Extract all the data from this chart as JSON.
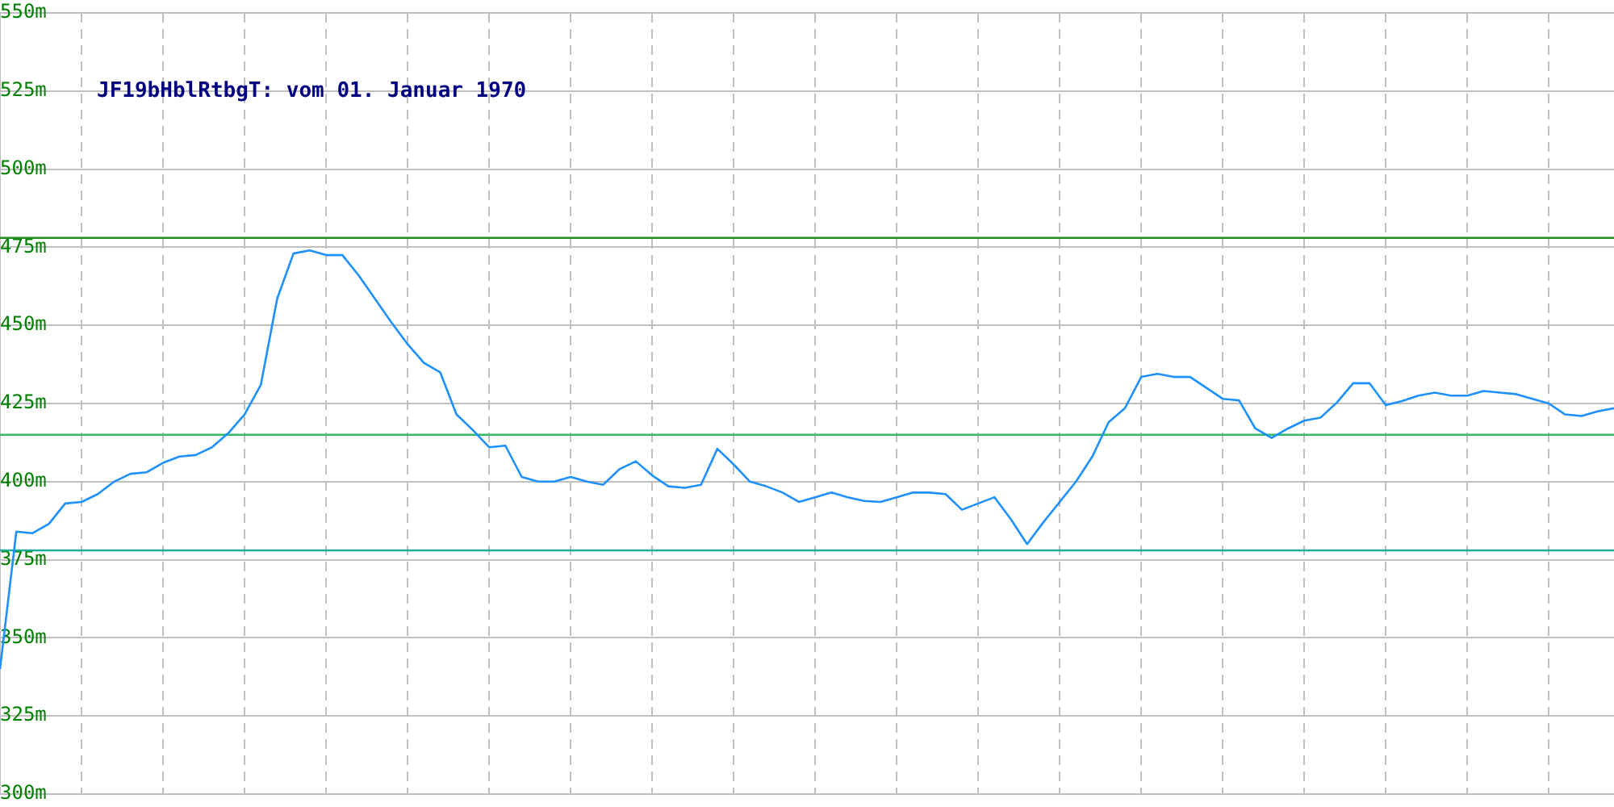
{
  "chart_data": {
    "type": "line",
    "title": "JF19bHblRtbgT: vom 01. Januar 1970",
    "categories": [
      null,
      null,
      null,
      null,
      null,
      null,
      null,
      null,
      null,
      null,
      null,
      null,
      null,
      null,
      null,
      null,
      null,
      null,
      null,
      null,
      null,
      null,
      null,
      null,
      null,
      null,
      null,
      null,
      null,
      null,
      null,
      null,
      null,
      null,
      null,
      null,
      null,
      null,
      null,
      null,
      null,
      null,
      null,
      null,
      null,
      null,
      null,
      null,
      null,
      null,
      null,
      null,
      null,
      null,
      null,
      null,
      null,
      null,
      null,
      null,
      null,
      null,
      null,
      null,
      null,
      null,
      null,
      null,
      null,
      null,
      null,
      null,
      null,
      null,
      null,
      null,
      null,
      null,
      null,
      null,
      null,
      null,
      null,
      null,
      null,
      null,
      null,
      null,
      null,
      null,
      null,
      null,
      null,
      null,
      null,
      null,
      null,
      null,
      null,
      null
    ],
    "series": [
      {
        "color": "#1e90ff",
        "values": [
          340,
          384,
          383.5,
          386.5,
          393,
          393.5,
          396,
          400,
          402.5,
          403,
          406,
          408,
          408.5,
          411,
          415.5,
          421.5,
          431,
          458.5,
          473,
          474,
          472.5,
          472.5,
          466,
          458.5,
          451,
          444,
          438,
          435,
          421.5,
          416.5,
          411,
          411.5,
          401.5,
          400,
          400,
          401.5,
          400,
          399,
          404,
          406.5,
          402,
          398.5,
          398,
          399,
          410.5,
          405.5,
          400,
          398.5,
          396.5,
          393.5,
          395,
          396.5,
          395,
          393.8,
          393.5,
          395,
          396.5,
          396.5,
          396,
          391,
          393,
          395,
          388,
          380,
          387,
          393.5,
          400,
          408,
          419,
          423.5,
          433.5,
          434.5,
          433.5,
          433.5,
          430,
          426.5,
          426,
          417,
          414,
          417,
          419.5,
          420.5,
          425.3,
          431.5,
          431.5,
          424.5,
          425.8,
          427.5,
          428.5,
          427.5,
          427.5,
          429,
          428.5,
          428,
          426.5,
          425,
          421.5,
          421,
          422.5,
          423.5
        ]
      }
    ],
    "ylim": [
      300,
      550
    ],
    "yticks": [
      {
        "value": 300,
        "label": "300m"
      },
      {
        "value": 325,
        "label": "325m"
      },
      {
        "value": 350,
        "label": "350m"
      },
      {
        "value": 375,
        "label": "375m"
      },
      {
        "value": 400,
        "label": "400m"
      },
      {
        "value": 425,
        "label": "425m"
      },
      {
        "value": 450,
        "label": "450m"
      },
      {
        "value": 475,
        "label": "475m"
      },
      {
        "value": 500,
        "label": "500m"
      },
      {
        "value": 525,
        "label": "525m"
      },
      {
        "value": 550,
        "label": "550m"
      }
    ],
    "tick_labels": "y",
    "grid": true,
    "marker": "none",
    "line_style": "solid",
    "ref_lines": [
      {
        "axis": "y",
        "value": 478,
        "color": "#228b22"
      },
      {
        "axis": "y",
        "value": 415,
        "color": "#33bb66"
      },
      {
        "axis": "y",
        "value": 378,
        "color": "#22aa99"
      }
    ]
  }
}
